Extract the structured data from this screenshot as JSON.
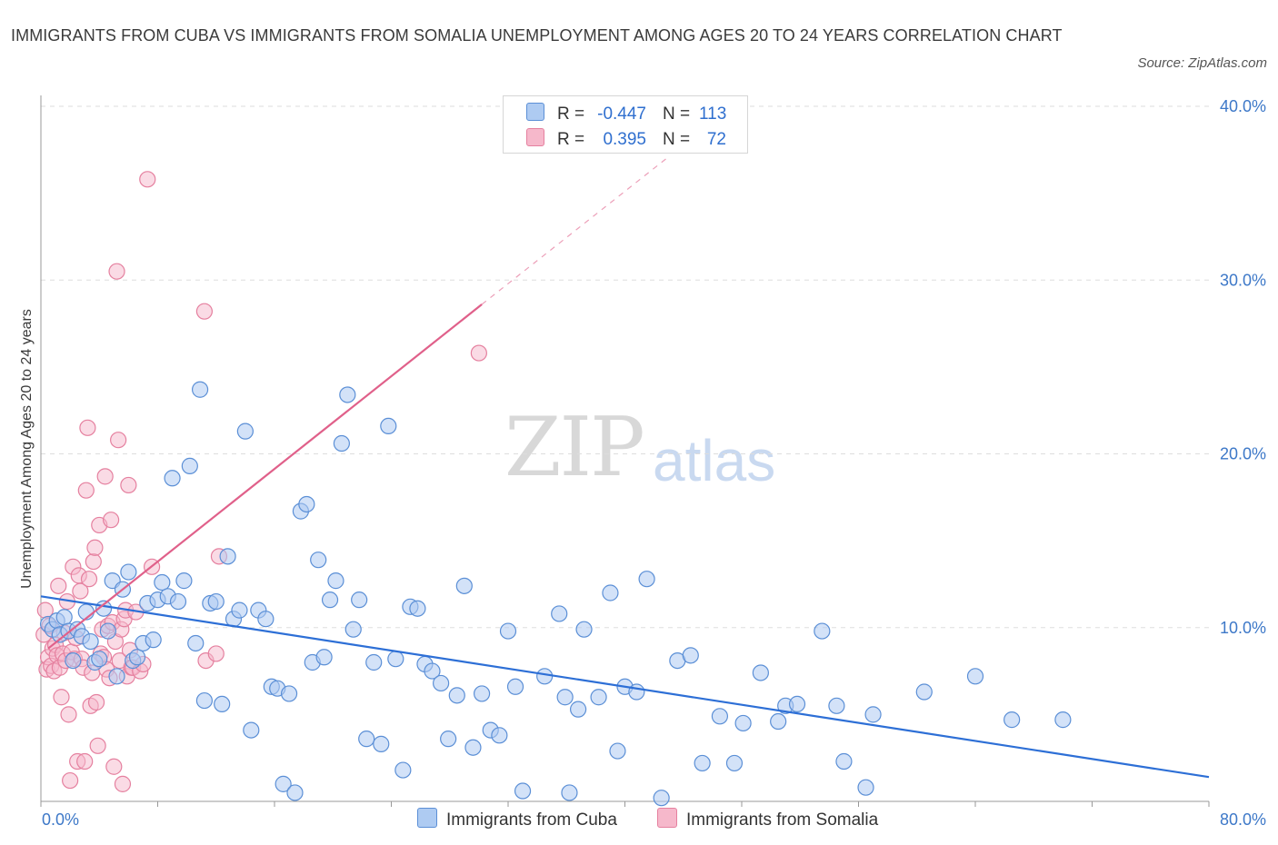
{
  "header": {
    "title": "IMMIGRANTS FROM CUBA VS IMMIGRANTS FROM SOMALIA UNEMPLOYMENT AMONG AGES 20 TO 24 YEARS CORRELATION CHART",
    "source": "Source: ZipAtlas.com"
  },
  "watermark": {
    "zip": "ZIP",
    "atlas": "atlas"
  },
  "legend": {
    "rows": [
      {
        "r_label": "R =",
        "r_value": "-0.447",
        "n_label": "N =",
        "n_value": "113",
        "color": "#aecbf2"
      },
      {
        "r_label": "R =",
        "r_value": "0.395",
        "n_label": "N =",
        "n_value": "72",
        "color": "#f6b8cb"
      }
    ],
    "items": [
      {
        "label": "Immigrants from Cuba",
        "color": "#aecbf2"
      },
      {
        "label": "Immigrants from Somalia",
        "color": "#f6b8cb"
      }
    ]
  },
  "colors": {
    "cuba_fill": "#aecbf2",
    "cuba_stroke": "#5b8fd6",
    "cuba_line": "#2d6fd6",
    "somalia_fill": "#f6b8cb",
    "somalia_stroke": "#e5809f",
    "somalia_line": "#e0608a",
    "tick": "#3d78c8",
    "grid": "#dddddd"
  },
  "chart_data": {
    "type": "scatter",
    "title": "IMMIGRANTS FROM CUBA VS IMMIGRANTS FROM SOMALIA UNEMPLOYMENT AMONG AGES 20 TO 24 YEARS CORRELATION CHART",
    "xlabel": "",
    "ylabel": "Unemployment Among Ages 20 to 24 years",
    "xlim": [
      0,
      80
    ],
    "ylim": [
      0,
      40
    ],
    "x_tick_labels": [
      "0.0%",
      "80.0%"
    ],
    "y_tick_values": [
      10,
      20,
      30,
      40
    ],
    "y_tick_labels": [
      "10.0%",
      "20.0%",
      "30.0%",
      "40.0%"
    ],
    "grid": true,
    "legend_position": "top-center",
    "series": [
      {
        "name": "Immigrants from Cuba",
        "trend": {
          "x": [
            0,
            80
          ],
          "y": [
            11.8,
            1.4
          ]
        },
        "points": [
          [
            0.5,
            10.2
          ],
          [
            0.8,
            9.9
          ],
          [
            1.1,
            10.4
          ],
          [
            1.3,
            9.6
          ],
          [
            1.6,
            10.6
          ],
          [
            1.9,
            9.8
          ],
          [
            2.2,
            8.1
          ],
          [
            2.5,
            9.9
          ],
          [
            2.8,
            9.5
          ],
          [
            3.1,
            10.9
          ],
          [
            3.4,
            9.2
          ],
          [
            3.7,
            8.0
          ],
          [
            4.0,
            8.2
          ],
          [
            4.3,
            11.1
          ],
          [
            4.6,
            9.8
          ],
          [
            4.9,
            12.7
          ],
          [
            5.2,
            7.2
          ],
          [
            5.6,
            12.2
          ],
          [
            6.0,
            13.2
          ],
          [
            6.3,
            8.1
          ],
          [
            6.6,
            8.3
          ],
          [
            7.0,
            9.1
          ],
          [
            7.3,
            11.4
          ],
          [
            7.7,
            9.3
          ],
          [
            8.0,
            11.6
          ],
          [
            8.3,
            12.6
          ],
          [
            8.7,
            11.8
          ],
          [
            9.0,
            18.6
          ],
          [
            9.4,
            11.5
          ],
          [
            9.8,
            12.7
          ],
          [
            10.2,
            19.3
          ],
          [
            10.6,
            9.1
          ],
          [
            10.9,
            23.7
          ],
          [
            11.2,
            5.8
          ],
          [
            11.6,
            11.4
          ],
          [
            12.0,
            11.5
          ],
          [
            12.4,
            5.6
          ],
          [
            12.8,
            14.1
          ],
          [
            13.2,
            10.5
          ],
          [
            13.6,
            11.0
          ],
          [
            14.0,
            21.3
          ],
          [
            14.4,
            4.1
          ],
          [
            14.9,
            11.0
          ],
          [
            15.4,
            10.5
          ],
          [
            15.8,
            6.6
          ],
          [
            16.2,
            6.5
          ],
          [
            16.6,
            1.0
          ],
          [
            17.0,
            6.2
          ],
          [
            17.4,
            0.5
          ],
          [
            17.8,
            16.7
          ],
          [
            18.2,
            17.1
          ],
          [
            18.6,
            8.0
          ],
          [
            19.0,
            13.9
          ],
          [
            19.4,
            8.3
          ],
          [
            19.8,
            11.6
          ],
          [
            20.2,
            12.7
          ],
          [
            20.6,
            20.6
          ],
          [
            21.0,
            23.4
          ],
          [
            21.4,
            9.9
          ],
          [
            21.8,
            11.6
          ],
          [
            22.3,
            3.6
          ],
          [
            22.8,
            8.0
          ],
          [
            23.3,
            3.3
          ],
          [
            23.8,
            21.6
          ],
          [
            24.3,
            8.2
          ],
          [
            24.8,
            1.8
          ],
          [
            25.3,
            11.2
          ],
          [
            25.8,
            11.1
          ],
          [
            26.3,
            7.9
          ],
          [
            26.8,
            7.5
          ],
          [
            27.4,
            6.8
          ],
          [
            27.9,
            3.6
          ],
          [
            28.5,
            6.1
          ],
          [
            29.0,
            12.4
          ],
          [
            29.6,
            3.1
          ],
          [
            30.2,
            6.2
          ],
          [
            30.8,
            4.1
          ],
          [
            31.4,
            3.8
          ],
          [
            32.0,
            9.8
          ],
          [
            32.5,
            6.6
          ],
          [
            33.0,
            0.6
          ],
          [
            34.5,
            7.2
          ],
          [
            35.5,
            10.8
          ],
          [
            35.9,
            6.0
          ],
          [
            36.2,
            0.5
          ],
          [
            36.8,
            5.3
          ],
          [
            37.2,
            9.9
          ],
          [
            38.2,
            6.0
          ],
          [
            39.0,
            12.0
          ],
          [
            39.5,
            2.9
          ],
          [
            40.0,
            6.6
          ],
          [
            40.8,
            6.3
          ],
          [
            41.5,
            12.8
          ],
          [
            42.5,
            0.2
          ],
          [
            43.6,
            8.1
          ],
          [
            44.5,
            8.4
          ],
          [
            45.3,
            2.2
          ],
          [
            46.5,
            4.9
          ],
          [
            47.5,
            2.2
          ],
          [
            48.1,
            4.5
          ],
          [
            49.3,
            7.4
          ],
          [
            50.5,
            4.6
          ],
          [
            51.0,
            5.5
          ],
          [
            51.8,
            5.6
          ],
          [
            53.5,
            9.8
          ],
          [
            54.5,
            5.5
          ],
          [
            55.0,
            2.3
          ],
          [
            56.5,
            0.8
          ],
          [
            57.0,
            5.0
          ],
          [
            60.5,
            6.3
          ],
          [
            64.0,
            7.2
          ],
          [
            66.5,
            4.7
          ],
          [
            70.0,
            4.7
          ]
        ]
      },
      {
        "name": "Immigrants from Somalia",
        "trend": {
          "x": [
            0.5,
            30.2
          ],
          "y": [
            8.8,
            28.6
          ],
          "dashed_to": [
            43.0,
            37.1
          ]
        },
        "points": [
          [
            0.2,
            9.6
          ],
          [
            0.3,
            11.0
          ],
          [
            0.4,
            7.6
          ],
          [
            0.5,
            8.3
          ],
          [
            0.6,
            10.1
          ],
          [
            0.7,
            7.8
          ],
          [
            0.8,
            8.8
          ],
          [
            0.9,
            7.5
          ],
          [
            1.0,
            9.0
          ],
          [
            1.1,
            8.4
          ],
          [
            1.2,
            12.4
          ],
          [
            1.3,
            7.7
          ],
          [
            1.4,
            6.0
          ],
          [
            1.5,
            8.5
          ],
          [
            1.6,
            9.7
          ],
          [
            1.7,
            8.1
          ],
          [
            1.8,
            11.5
          ],
          [
            1.9,
            5.0
          ],
          [
            2.0,
            1.2
          ],
          [
            2.1,
            8.6
          ],
          [
            2.2,
            13.5
          ],
          [
            2.3,
            8.2
          ],
          [
            2.4,
            9.4
          ],
          [
            2.5,
            2.3
          ],
          [
            2.6,
            13.0
          ],
          [
            2.7,
            12.1
          ],
          [
            2.8,
            8.2
          ],
          [
            2.9,
            7.7
          ],
          [
            3.0,
            2.3
          ],
          [
            3.1,
            17.9
          ],
          [
            3.2,
            21.5
          ],
          [
            3.3,
            12.8
          ],
          [
            3.4,
            5.5
          ],
          [
            3.5,
            7.4
          ],
          [
            3.6,
            13.8
          ],
          [
            3.7,
            14.6
          ],
          [
            3.8,
            5.7
          ],
          [
            3.9,
            3.2
          ],
          [
            4.0,
            15.9
          ],
          [
            4.1,
            8.5
          ],
          [
            4.2,
            9.9
          ],
          [
            4.3,
            8.3
          ],
          [
            4.4,
            18.7
          ],
          [
            4.5,
            7.6
          ],
          [
            4.6,
            10.1
          ],
          [
            4.7,
            7.1
          ],
          [
            4.8,
            16.2
          ],
          [
            4.9,
            10.3
          ],
          [
            5.0,
            2.0
          ],
          [
            5.1,
            9.2
          ],
          [
            5.2,
            30.5
          ],
          [
            5.3,
            20.8
          ],
          [
            5.4,
            8.1
          ],
          [
            5.5,
            9.9
          ],
          [
            5.6,
            1.0
          ],
          [
            5.7,
            10.5
          ],
          [
            5.8,
            11.0
          ],
          [
            5.9,
            7.2
          ],
          [
            6.0,
            18.2
          ],
          [
            6.1,
            8.7
          ],
          [
            6.2,
            7.7
          ],
          [
            6.3,
            7.7
          ],
          [
            6.5,
            10.9
          ],
          [
            6.8,
            7.5
          ],
          [
            7.0,
            7.9
          ],
          [
            7.3,
            35.8
          ],
          [
            7.6,
            13.5
          ],
          [
            11.2,
            28.2
          ],
          [
            11.3,
            8.1
          ],
          [
            12.0,
            8.5
          ],
          [
            12.2,
            14.1
          ],
          [
            30.0,
            25.8
          ]
        ]
      }
    ]
  }
}
